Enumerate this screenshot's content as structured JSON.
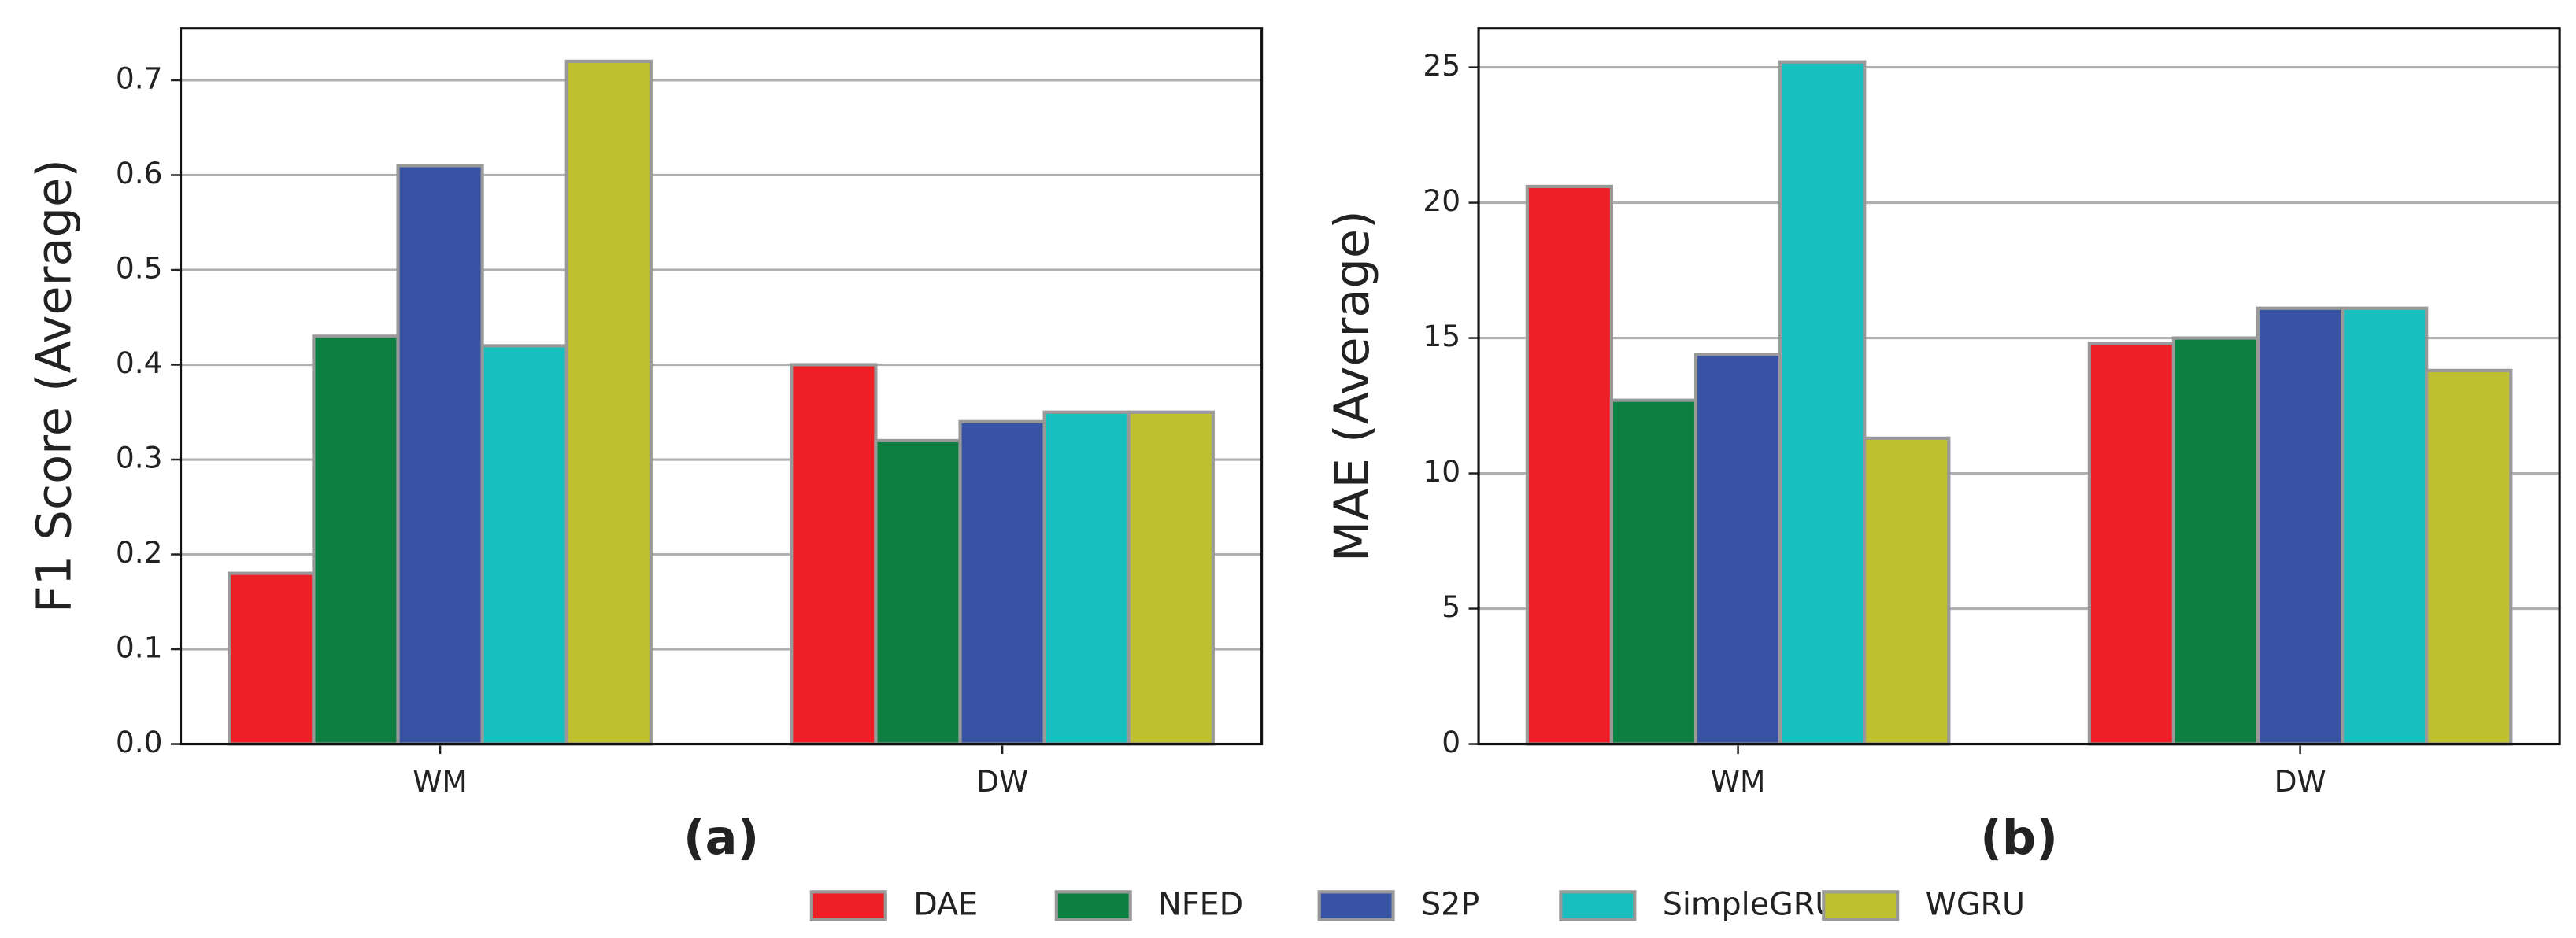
{
  "chart_data": [
    {
      "type": "bar",
      "y_label": "F1 Score (Average)",
      "x_label": "(a)",
      "categories": [
        "WM",
        "DW"
      ],
      "series": [
        {
          "name": "DAE",
          "color": "#ee1f25",
          "values": [
            0.18,
            0.4
          ]
        },
        {
          "name": "NFED",
          "color": "#0b8040",
          "values": [
            0.43,
            0.32
          ]
        },
        {
          "name": "S2P",
          "color": "#3853a4",
          "values": [
            0.61,
            0.34
          ]
        },
        {
          "name": "SimpleGRU",
          "color": "#18bfbf",
          "values": [
            0.42,
            0.35
          ]
        },
        {
          "name": "WGRU",
          "color": "#bfc030",
          "values": [
            0.72,
            0.35
          ]
        }
      ],
      "ylim": [
        0,
        0.755
      ],
      "yticks": [
        {
          "value": 0,
          "label": "0.0"
        },
        0.1,
        0.2,
        0.3,
        0.4,
        0.5,
        0.6,
        0.7
      ],
      "grid": true
    },
    {
      "type": "bar",
      "y_label": "MAE (Average)",
      "x_label": "(b)",
      "categories": [
        "WM",
        "DW"
      ],
      "series": [
        {
          "color": "#ee1f25",
          "values": [
            20.6,
            14.8
          ]
        },
        {
          "color": "#0b8040",
          "values": [
            12.7,
            15.0
          ]
        },
        {
          "color": "#3853a4",
          "values": [
            14.4,
            16.1
          ]
        },
        {
          "color": "#18bfbf",
          "values": [
            25.2,
            16.1
          ]
        },
        {
          "color": "#bfc030",
          "values": [
            11.3,
            13.8
          ]
        }
      ],
      "ylim": [
        0,
        26.45
      ],
      "yticks": [
        0,
        5,
        10,
        15,
        20,
        25
      ],
      "grid": true
    }
  ]
}
